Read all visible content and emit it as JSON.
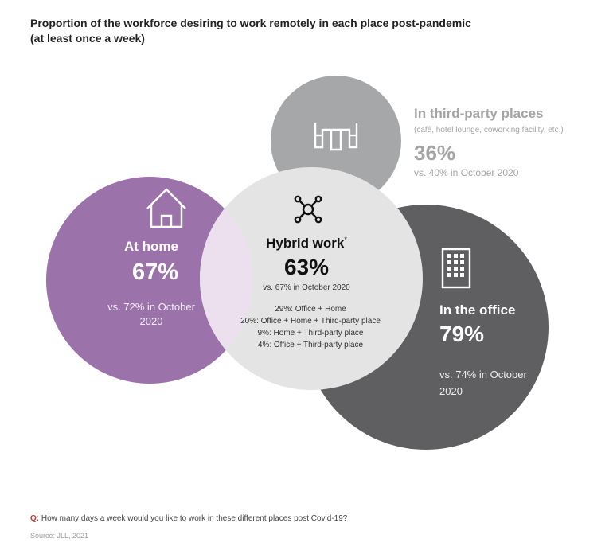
{
  "title": {
    "line1": "Proportion of the workforce desiring to work remotely in each place post-pandemic",
    "line2": "(at least once a week)"
  },
  "colors": {
    "home": "#9b73aa",
    "hybrid_overlap": "#ece0ee",
    "office": "#5f5e61",
    "third_party": "#a6a7a9",
    "overlap_grey": "#dcdcdc",
    "accent_red": "#d0312d"
  },
  "icons": {
    "home": "house-icon",
    "hybrid": "network-icon",
    "third_party": "third-party-desk-icon",
    "office": "office-building-icon"
  },
  "home": {
    "label": "At home",
    "percent": "67%",
    "comparison": "vs. 72% in October 2020"
  },
  "hybrid": {
    "label": "Hybrid work",
    "footnote_mark": "*",
    "percent": "63%",
    "comparison": "vs. 67% in October 2020",
    "breakdown": [
      "29%: Office + Home",
      "20%: Office + Home + Third-party place",
      "9%: Home + Third-party place",
      "4%: Office + Third-party place"
    ]
  },
  "third_party": {
    "label": "In third-party places",
    "subtitle": "(café, hotel lounge, coworking facility, etc.)",
    "percent": "36%",
    "comparison": "vs. 40% in October 2020"
  },
  "office": {
    "label": "In the office",
    "percent": "79%",
    "comparison": "vs. 74% in October 2020"
  },
  "footer": {
    "question_prefix": "Q:",
    "question": "How many days a week would you like to work in these different places post Covid-19?",
    "source": "Source: JLL, 2021"
  }
}
